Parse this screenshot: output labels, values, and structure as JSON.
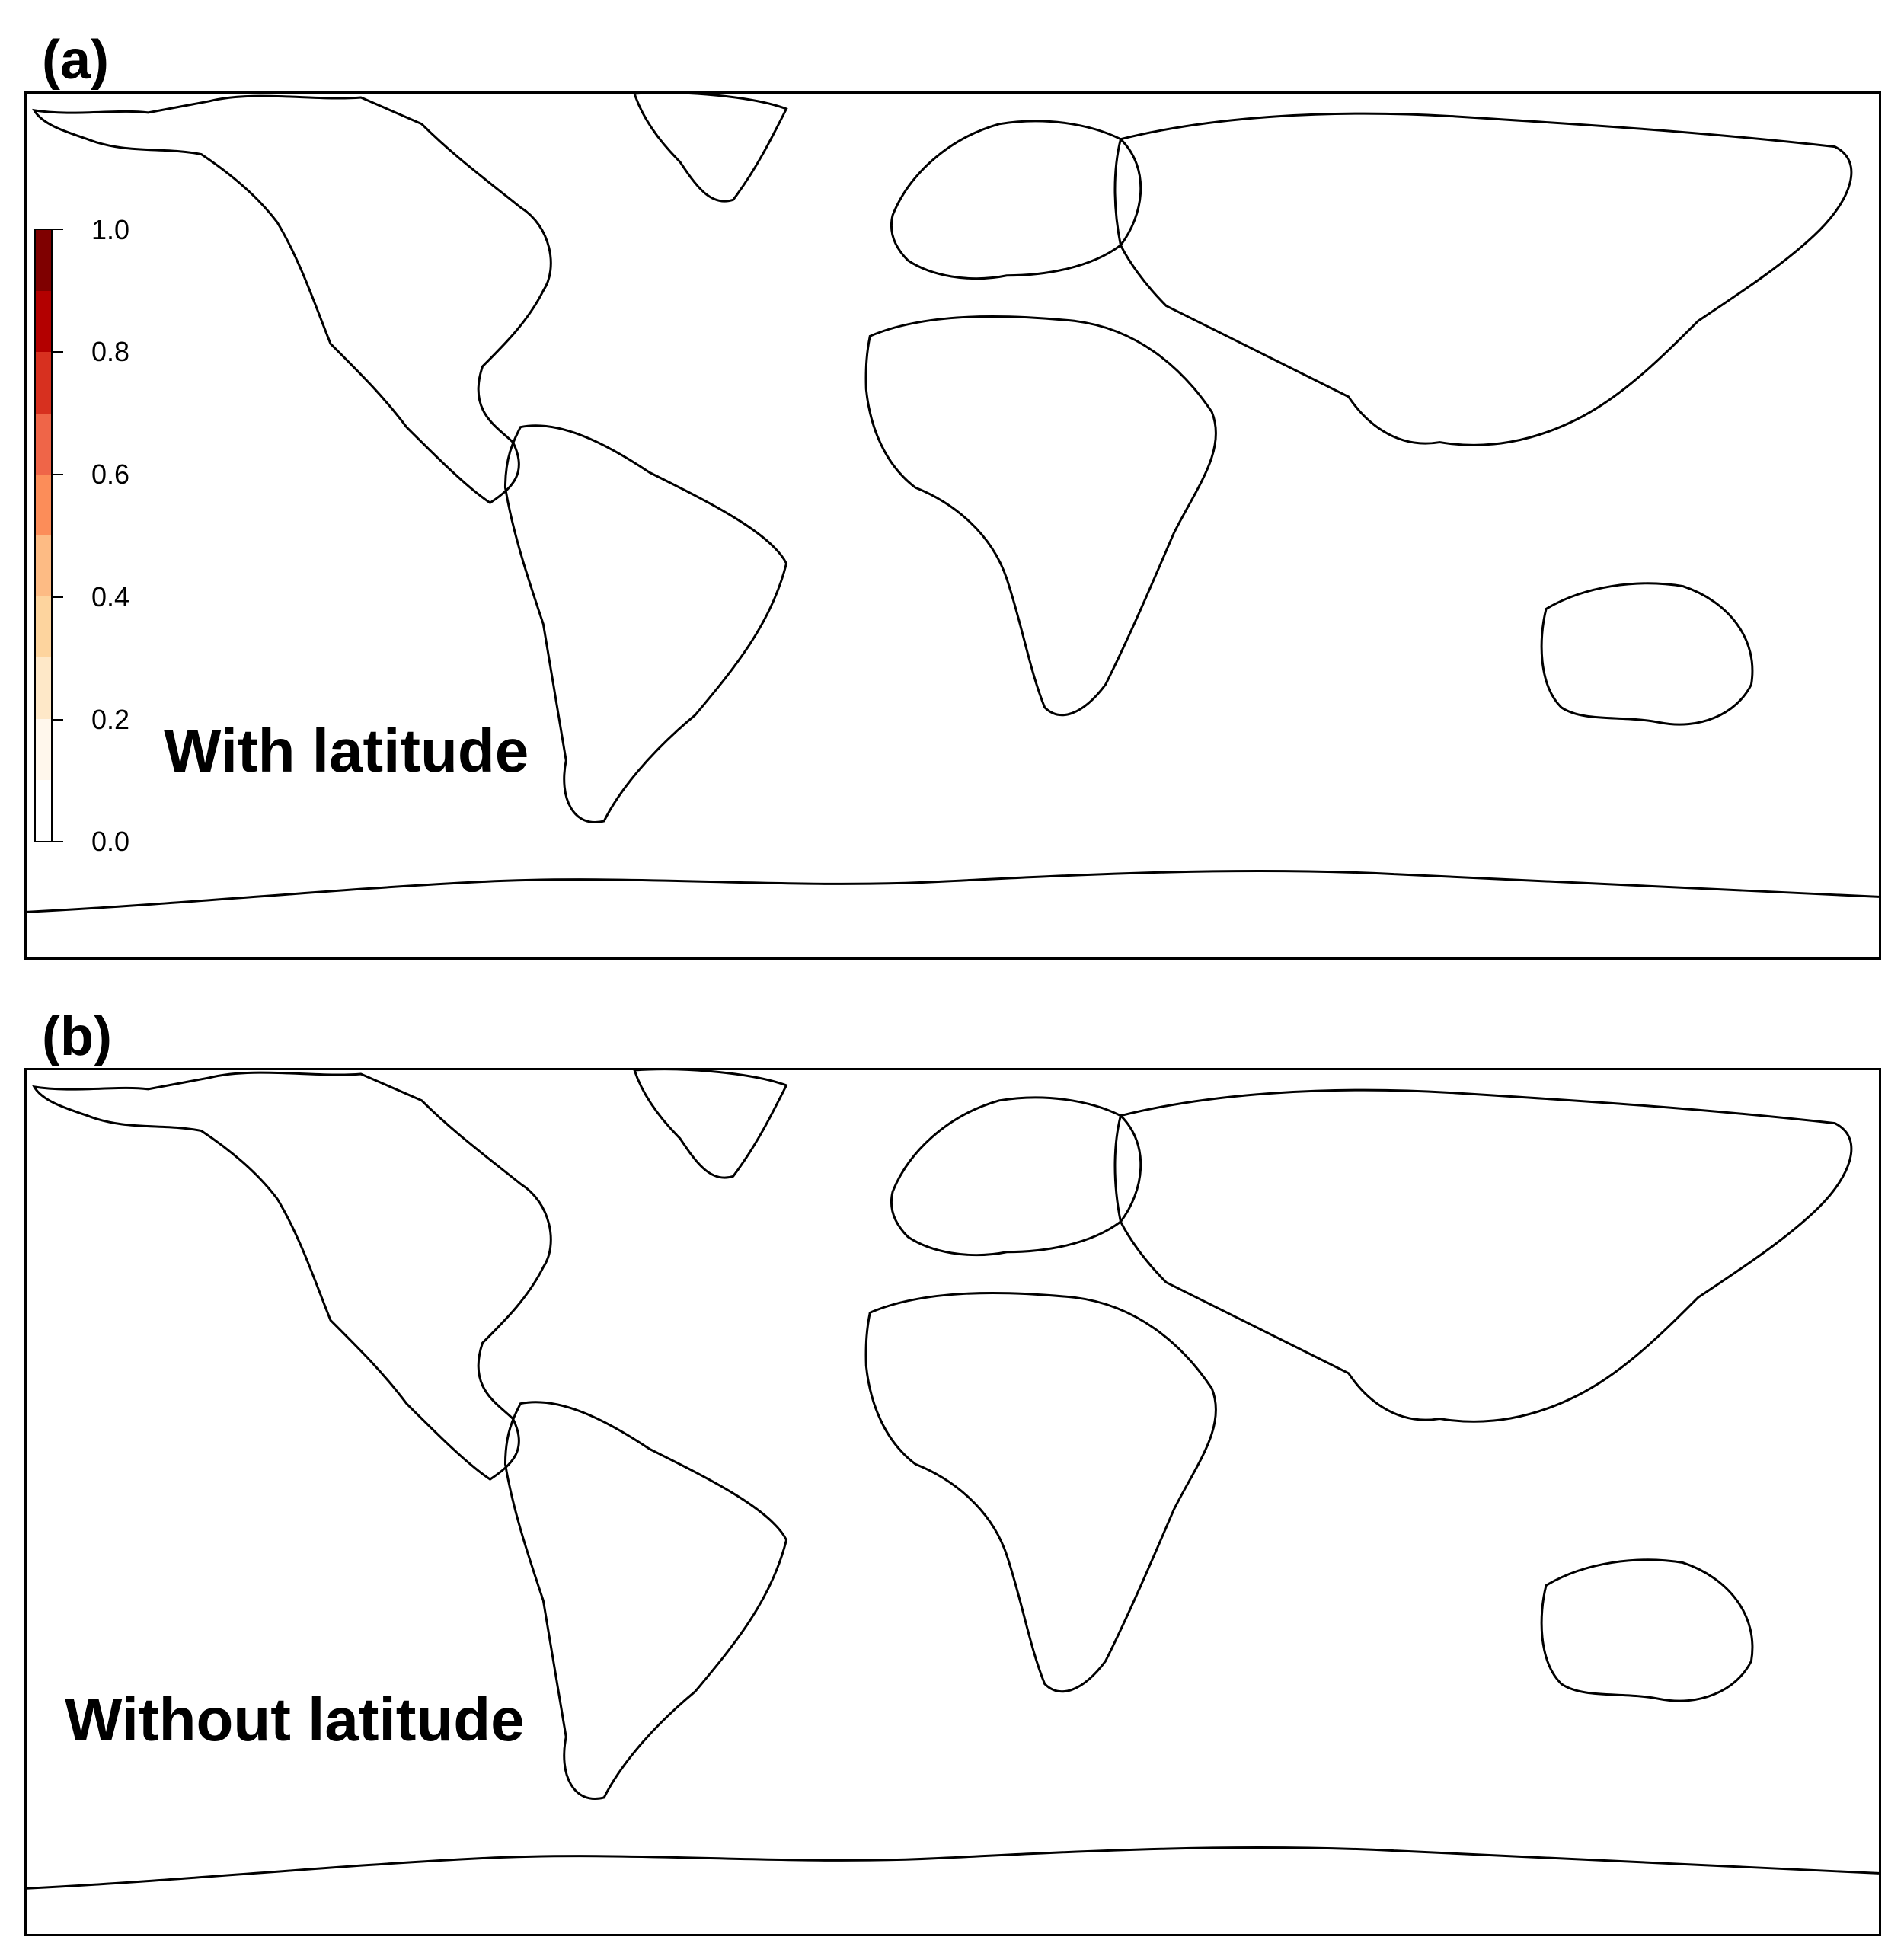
{
  "panels": [
    {
      "letter": "(a)",
      "label": "With latitude"
    },
    {
      "letter": "(b)",
      "label": "Without latitude"
    }
  ],
  "legend": {
    "ticks": [
      "1.0",
      "0.8",
      "0.6",
      "0.4",
      "0.2",
      "0.0"
    ],
    "range": [
      0.0,
      1.0
    ],
    "colors": [
      "#7f0000",
      "#b30000",
      "#d7301f",
      "#ef6548",
      "#fc8d59",
      "#fdbb84",
      "#fdd49e",
      "#fee8c8",
      "#fff7ec",
      "#ffffff"
    ]
  },
  "colors": {
    "outline": "#000000",
    "background": "#ffffff"
  }
}
